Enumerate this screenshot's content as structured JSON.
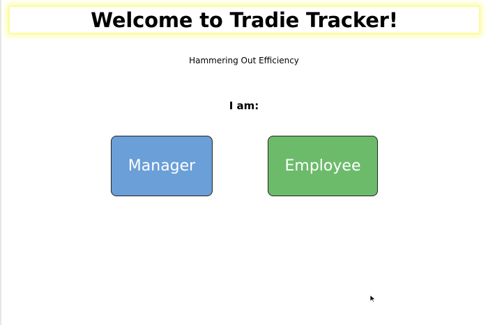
{
  "header": {
    "title": "Welcome to Tradie Tracker!"
  },
  "main": {
    "subtitle": "Hammering Out Efficiency",
    "prompt": "I am:",
    "roles": {
      "manager_label": "Manager",
      "employee_label": "Employee"
    }
  },
  "colors": {
    "manager": "#6a9fd7",
    "employee": "#6cbb6b",
    "header_glow": "#fbfb9b"
  },
  "icons": {
    "cursor": "mouse-pointer-icon"
  }
}
